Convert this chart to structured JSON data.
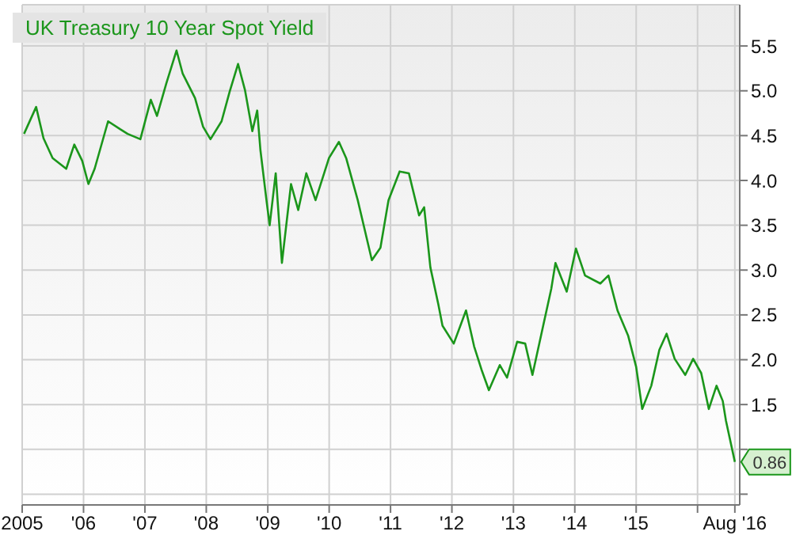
{
  "chart_data": {
    "type": "line",
    "legend": "top left",
    "grid": true,
    "marker": "none",
    "line_style": "solid",
    "xlim": [
      "2005-01-01",
      "2016-09-08"
    ],
    "ylim": [
      0.38,
      5.96
    ],
    "xticks": [
      {
        "value": "2005-01-01",
        "label": "2005"
      },
      {
        "value": "2006-01-01",
        "label": "'06"
      },
      {
        "value": "2007-01-01",
        "label": "'07"
      },
      {
        "value": "2008-01-01",
        "label": "'08"
      },
      {
        "value": "2009-01-01",
        "label": "'09"
      },
      {
        "value": "2010-01-01",
        "label": "'10"
      },
      {
        "value": "2011-01-01",
        "label": "'11"
      },
      {
        "value": "2012-01-01",
        "label": "'12"
      },
      {
        "value": "2013-01-01",
        "label": "'13"
      },
      {
        "value": "2014-01-01",
        "label": "'14"
      },
      {
        "value": "2015-01-01",
        "label": "'15"
      },
      {
        "value": "2016-01-01",
        "label": null
      },
      {
        "value": "2016-08-10",
        "label": "Aug '16"
      }
    ],
    "yticks": [
      {
        "value": 0.5,
        "label": null
      },
      {
        "value": 1,
        "label": null
      },
      1.5,
      {
        "value": 2,
        "label": "2.0"
      },
      2.5,
      {
        "value": 3,
        "label": "3.0"
      },
      3.5,
      {
        "value": 4,
        "label": "4.0"
      },
      4.5,
      {
        "value": 5,
        "label": "5.0"
      },
      5.5
    ],
    "x": [
      "2005-01-12",
      "2005-03-25",
      "2005-05-08",
      "2005-07-01",
      "2005-09-20",
      "2005-11-07",
      "2005-12-24",
      "2006-01-30",
      "2006-03-08",
      "2006-05-27",
      "2006-08-08",
      "2006-09-20",
      "2006-12-05",
      "2007-02-05",
      "2007-03-14",
      "2007-05-08",
      "2007-07-08",
      "2007-08-14",
      "2007-10-26",
      "2007-12-13",
      "2008-01-26",
      "2008-04-01",
      "2008-05-19",
      "2008-07-08",
      "2008-08-18",
      "2008-10-01",
      "2008-10-30",
      "2008-11-18",
      "2008-12-24",
      "2009-01-12",
      "2009-02-17",
      "2009-03-26",
      "2009-05-19",
      "2009-07-01",
      "2009-08-18",
      "2009-10-12",
      "2009-12-31",
      "2010-02-28",
      "2010-04-12",
      "2010-06-20",
      "2010-09-12",
      "2010-11-02",
      "2010-12-20",
      "2011-02-24",
      "2011-04-20",
      "2011-06-20",
      "2011-07-20",
      "2011-08-26",
      "2011-10-12",
      "2011-11-06",
      "2012-01-12",
      "2012-03-25",
      "2012-05-12",
      "2012-06-25",
      "2012-08-08",
      "2012-10-12",
      "2012-11-24",
      "2013-01-23",
      "2013-03-12",
      "2013-04-24",
      "2013-06-27",
      "2013-08-14",
      "2013-09-08",
      "2013-11-14",
      "2014-01-08",
      "2014-03-03",
      "2014-06-02",
      "2014-07-20",
      "2014-09-12",
      "2014-11-14",
      "2015-01-01",
      "2015-02-06",
      "2015-04-01",
      "2015-05-19",
      "2015-07-01",
      "2015-08-18",
      "2015-10-20",
      "2015-12-06",
      "2016-01-23",
      "2016-03-08",
      "2016-04-23",
      "2016-05-30",
      "2016-06-18",
      "2016-08-10"
    ],
    "series": [
      {
        "name": "UK Treasury 10 Year Spot Yield",
        "color": "#1b961b",
        "values": [
          4.52,
          4.82,
          4.47,
          4.25,
          4.13,
          4.4,
          4.22,
          3.96,
          4.13,
          4.66,
          4.57,
          4.52,
          4.46,
          4.9,
          4.72,
          5.08,
          5.45,
          5.19,
          4.92,
          4.6,
          4.46,
          4.66,
          4.99,
          5.3,
          5.01,
          4.55,
          4.78,
          4.34,
          3.78,
          3.5,
          4.08,
          3.08,
          3.96,
          3.67,
          4.08,
          3.78,
          4.25,
          4.43,
          4.25,
          3.78,
          3.11,
          3.25,
          3.78,
          4.1,
          4.08,
          3.61,
          3.7,
          3.03,
          2.62,
          2.38,
          2.18,
          2.55,
          2.15,
          1.89,
          1.66,
          1.94,
          1.8,
          2.2,
          2.18,
          1.83,
          2.38,
          2.79,
          3.08,
          2.76,
          3.24,
          2.94,
          2.85,
          2.94,
          2.55,
          2.27,
          1.92,
          1.45,
          1.71,
          2.11,
          2.29,
          2.01,
          1.83,
          2.01,
          1.85,
          1.45,
          1.71,
          1.54,
          1.32,
          0.86
        ],
        "value_labels": [
          null,
          null,
          null,
          null,
          null,
          null,
          null,
          null,
          null,
          null,
          null,
          null,
          null,
          null,
          null,
          null,
          null,
          null,
          null,
          null,
          null,
          null,
          null,
          null,
          null,
          null,
          null,
          null,
          null,
          null,
          null,
          null,
          null,
          null,
          null,
          null,
          null,
          null,
          null,
          null,
          null,
          null,
          null,
          null,
          null,
          null,
          null,
          null,
          null,
          null,
          null,
          null,
          null,
          null,
          null,
          null,
          null,
          null,
          null,
          null,
          null,
          null,
          null,
          null,
          null,
          null,
          null,
          null,
          null,
          null,
          null,
          null,
          null,
          null,
          null,
          null,
          null,
          null,
          null,
          null,
          null,
          null,
          null,
          "0.86"
        ]
      }
    ]
  }
}
